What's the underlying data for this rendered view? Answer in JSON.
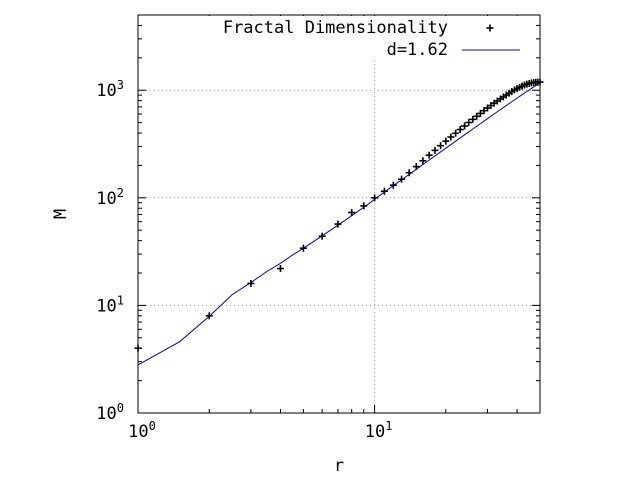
{
  "chart_data": {
    "type": "scatter",
    "title": "",
    "xlabel": "r",
    "ylabel": "M",
    "xscale": "log",
    "yscale": "log",
    "xlim": [
      1,
      50
    ],
    "ylim": [
      1,
      5000
    ],
    "grid": true,
    "legend_position": "top-right",
    "x_ticks": [
      {
        "base": "10",
        "exp": "0",
        "value": 1
      },
      {
        "base": "10",
        "exp": "1",
        "value": 10
      }
    ],
    "y_ticks": [
      {
        "base": "10",
        "exp": "0",
        "value": 1
      },
      {
        "base": "10",
        "exp": "1",
        "value": 10
      },
      {
        "base": "10",
        "exp": "2",
        "value": 100
      },
      {
        "base": "10",
        "exp": "3",
        "value": 1000
      }
    ],
    "series": [
      {
        "name": "Fractal Dimensionality",
        "style": "points",
        "marker": "+",
        "color": "#000000",
        "x": [
          1,
          2,
          3,
          4,
          5,
          6,
          7,
          8,
          9,
          10,
          11,
          12,
          13,
          14,
          15,
          16,
          17,
          18,
          19,
          20,
          21,
          22,
          23,
          24,
          25,
          26,
          27,
          28,
          29,
          30,
          31,
          32,
          33,
          34,
          35,
          36,
          37,
          38,
          39,
          40,
          41,
          42,
          43,
          44,
          45,
          46,
          47,
          48,
          49,
          50
        ],
        "y": [
          4,
          8,
          16,
          22,
          34,
          44,
          57,
          73,
          84,
          100,
          115,
          131,
          149,
          171,
          195,
          221,
          249,
          276,
          305,
          336,
          367,
          398,
          431,
          465,
          501,
          536,
          572,
          608,
          646,
          684,
          720,
          757,
          794,
          830,
          866,
          902,
          937,
          971,
          1005,
          1036,
          1065,
          1092,
          1117,
          1138,
          1155,
          1168,
          1177,
          1183,
          1188,
          1192
        ]
      },
      {
        "name": "d=1.62",
        "style": "line",
        "color": "#0000cc",
        "d": 1.62,
        "x": [
          1,
          1.5,
          2,
          2.5,
          3,
          3.5,
          4,
          4.5,
          5,
          5.5,
          6,
          6.5,
          7,
          7.5,
          8,
          8.5,
          9,
          9.5,
          10,
          11,
          12,
          13,
          14,
          15,
          16,
          17,
          18,
          19,
          20,
          22,
          24,
          26,
          28,
          30,
          32,
          34,
          36,
          38,
          40,
          42,
          44,
          46,
          48,
          50
        ],
        "y": [
          2.8,
          4.6,
          7.9,
          12.6,
          16.3,
          20.6,
          24.6,
          29.4,
          34.0,
          39.0,
          44.3,
          49.9,
          55.7,
          61.8,
          68.2,
          74.9,
          81.7,
          88.9,
          97,
          113,
          130,
          147,
          165,
          184,
          204,
          224,
          245,
          267,
          289,
          336,
          385,
          436,
          489,
          544,
          601,
          660,
          720,
          781,
          844,
          908,
          973,
          1039,
          1108,
          1180
        ]
      }
    ]
  }
}
